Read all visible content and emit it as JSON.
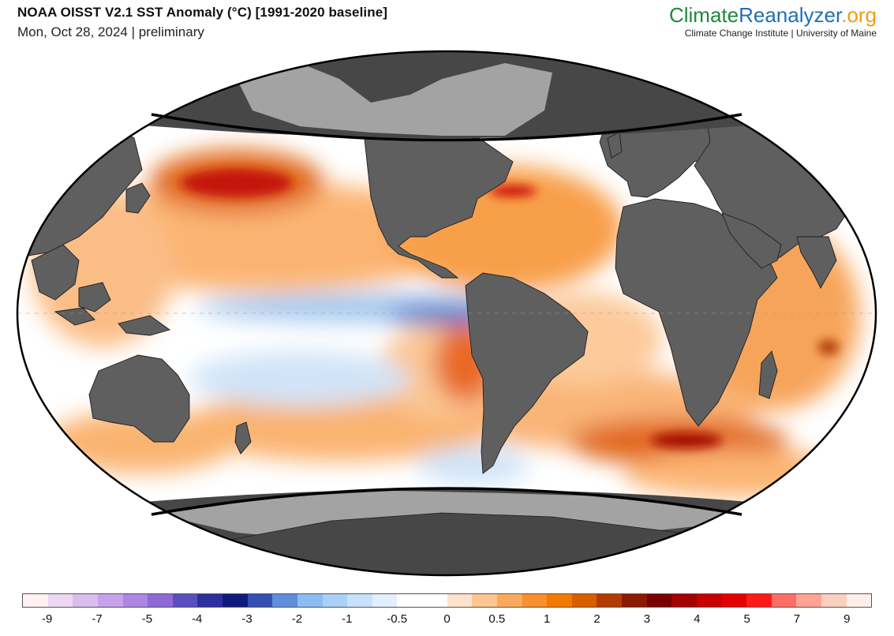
{
  "header": {
    "title": "NOAA OISST V2.1 SST Anomaly (°C) [1991-2020 baseline]",
    "subtitle": "Mon, Oct 28, 2024 | preliminary"
  },
  "brand": {
    "part1": "Climate",
    "part2": "Reanalyzer",
    "part3": ".org",
    "subline": "Climate Change Institute | University of Maine"
  },
  "colors": {
    "land": "#5f5f5f",
    "sea_ice": "#a3a3a3",
    "polar_mask": "#474747",
    "ocean_base": "#ffffff"
  },
  "colorbar": {
    "colors": [
      "#fff0f2",
      "#ecd8f2",
      "#d9bdef",
      "#c7a2ea",
      "#ad86e3",
      "#8e6ad6",
      "#5b4fbf",
      "#2e2f9e",
      "#101a7d",
      "#3451b2",
      "#5f8edb",
      "#8cbdf2",
      "#a9d1f7",
      "#c7e1fa",
      "#e3effc",
      "#ffffff",
      "#ffffff",
      "#fde2cc",
      "#fcc691",
      "#fbaa5d",
      "#f8902d",
      "#f27a00",
      "#d95e00",
      "#b23c00",
      "#8c1a00",
      "#7a0000",
      "#a30000",
      "#c70000",
      "#e50000",
      "#ff1a1a",
      "#ff6e64",
      "#ffa394",
      "#fdcfbf",
      "#ffeeea"
    ],
    "tick_labels": [
      "-9",
      "-7",
      "-5",
      "-4",
      "-3",
      "-2",
      "-1",
      "-0.5",
      "0",
      "0.5",
      "1",
      "2",
      "3",
      "4",
      "5",
      "7",
      "9"
    ]
  }
}
